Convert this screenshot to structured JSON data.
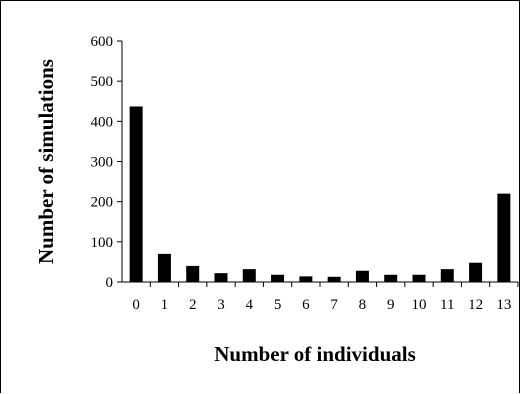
{
  "chart_data": {
    "type": "bar",
    "title": "",
    "xlabel": "Number of individuals",
    "ylabel": "Number of simulations",
    "categories": [
      "0",
      "1",
      "2",
      "3",
      "4",
      "5",
      "6",
      "7",
      "8",
      "9",
      "10",
      "11",
      "12",
      "13"
    ],
    "values": [
      437,
      70,
      40,
      22,
      32,
      18,
      14,
      13,
      28,
      18,
      18,
      32,
      48,
      220
    ],
    "ylim": [
      0,
      600
    ],
    "yticks": [
      "0",
      "100",
      "200",
      "300",
      "400",
      "500",
      "600"
    ],
    "grid": false,
    "legend": "none",
    "bar_color": "#000000"
  }
}
